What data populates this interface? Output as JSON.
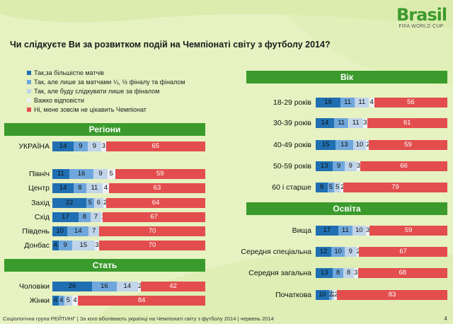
{
  "logo": {
    "main": "Brasil",
    "sub": "FIFA WORLD CUP"
  },
  "title": "Чи слідкуєте Ви за розвитком подій на Чемпіонаті світу з футболу 2014?",
  "colors": {
    "bg": "#e7f2c2",
    "header": "#3a9b2c",
    "s0": "#1f6fb2",
    "s1": "#6fa7dc",
    "s2": "#c0d4ea",
    "s3": "#edf1f6",
    "s4": "#e34d4d"
  },
  "footer": {
    "text": "Соціологічна група РЕЙТИНГ  |  За кого вболівають українці на Чемпіонаті світу з футболу 2014  |  червень 2014",
    "page": "4"
  },
  "chart_data": {
    "type": "bar",
    "stacked": true,
    "orientation": "horizontal",
    "title": "Чи слідкуєте Ви за розвитком подій на Чемпіонаті світу з футболу 2014?",
    "legend": [
      "Так,за більшістю матчів",
      "Так, але лише за матчами ¼, ½ фіналу та фіналом",
      "Так, але буду слідкувати лише за фіналом",
      "Важко відповісти",
      "Ні, мене зовсім не цікавить Чемпіонат"
    ],
    "panels": [
      {
        "header": "Регіони",
        "categories": [
          "УКРАЇНА",
          "Північ",
          "Центр",
          "Захід",
          "Схід",
          "Південь",
          "Донбас"
        ],
        "values": [
          [
            14,
            9,
            9,
            3,
            65
          ],
          [
            11,
            16,
            9,
            5,
            59
          ],
          [
            14,
            8,
            11,
            4,
            63
          ],
          [
            22,
            5,
            6,
            2,
            64
          ],
          [
            17,
            8,
            7,
            1,
            67
          ],
          [
            10,
            14,
            7,
            0,
            70
          ],
          [
            4,
            9,
            15,
            3,
            70
          ]
        ]
      },
      {
        "header": "Стать",
        "categories": [
          "Чоловіки",
          "Жінки"
        ],
        "values": [
          [
            26,
            16,
            14,
            2,
            42
          ],
          [
            4,
            4,
            5,
            4,
            84
          ]
        ]
      },
      {
        "header": "Вік",
        "categories": [
          "18-29 років",
          "30-39 років",
          "40-49 років",
          "50-59 років",
          "60 і старше"
        ],
        "values": [
          [
            19,
            11,
            11,
            4,
            56
          ],
          [
            14,
            11,
            11,
            3,
            61
          ],
          [
            15,
            13,
            10,
            2,
            59
          ],
          [
            13,
            9,
            9,
            3,
            66
          ],
          [
            9,
            5,
            5,
            2,
            79
          ]
        ]
      },
      {
        "header": "Освіта",
        "categories": [
          "Вища",
          "Середня спеціальна",
          "Середня загальна",
          "Початкова"
        ],
        "values": [
          [
            17,
            11,
            10,
            3,
            59
          ],
          [
            12,
            10,
            9,
            2,
            67
          ],
          [
            13,
            8,
            8,
            3,
            68
          ],
          [
            10,
            2,
            2,
            2,
            83
          ]
        ]
      }
    ]
  }
}
